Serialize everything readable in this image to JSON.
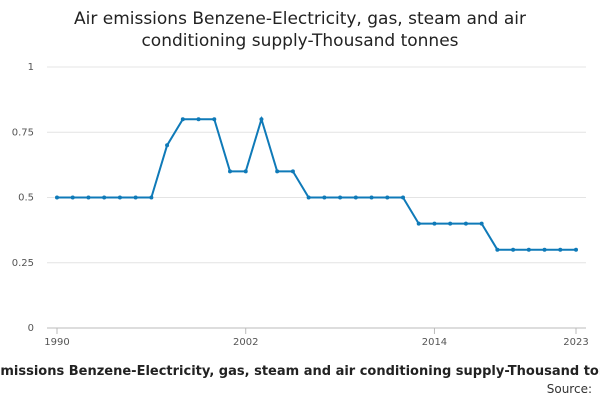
{
  "chart_data": {
    "type": "line",
    "title": "Air emissions Benzene-Electricity, gas, steam and air conditioning supply-Thousand tonnes",
    "footer_title": "Air emissions Benzene-Electricity, gas, steam and air conditioning supply-Thousand tonnes",
    "source": "Source:",
    "x": [
      1990,
      1991,
      1992,
      1993,
      1994,
      1995,
      1996,
      1997,
      1998,
      1999,
      2000,
      2001,
      2002,
      2003,
      2004,
      2005,
      2006,
      2007,
      2008,
      2009,
      2010,
      2011,
      2012,
      2013,
      2014,
      2015,
      2016,
      2017,
      2018,
      2019,
      2020,
      2021,
      2022,
      2023
    ],
    "series": [
      {
        "name": "Air emissions Benzene",
        "color": "#0f7ab8",
        "values": [
          0.5,
          0.5,
          0.5,
          0.5,
          0.5,
          0.5,
          0.5,
          0.7,
          0.8,
          0.8,
          0.8,
          0.6,
          0.6,
          0.8,
          0.6,
          0.6,
          0.5,
          0.5,
          0.5,
          0.5,
          0.5,
          0.5,
          0.5,
          0.4,
          0.4,
          0.4,
          0.4,
          0.4,
          0.3,
          0.3,
          0.3,
          0.3,
          0.3,
          0.3
        ]
      }
    ],
    "xlim": [
      1990,
      2023
    ],
    "xticks": [
      1990,
      2002,
      2014,
      2023
    ],
    "ylim": [
      0,
      1
    ],
    "yticks": [
      0,
      0.25,
      0.5,
      0.75,
      1
    ],
    "grid": true
  }
}
